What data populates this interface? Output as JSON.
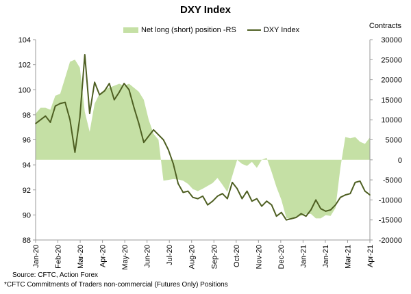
{
  "chart_data": {
    "type": "line",
    "title": "DXY Index",
    "series": [
      {
        "name": "Net long (short) position -RS",
        "type": "area",
        "axis": "right",
        "color": "#c5e0a5",
        "values": [
          11500,
          13000,
          13000,
          12500,
          16000,
          16500,
          20500,
          24500,
          25000,
          23000,
          12000,
          7000,
          14000,
          16500,
          17500,
          18000,
          18500,
          19000,
          18500,
          19000,
          18000,
          17000,
          15000,
          10000,
          6500,
          5000,
          -5200,
          -5000,
          -4800,
          -4900,
          -5200,
          -6000,
          -7300,
          -7800,
          -7200,
          -6500,
          -5800,
          -4500,
          -6200,
          -8000,
          -4000,
          0,
          -1000,
          -1500,
          -500,
          -2000,
          0,
          500,
          -3000,
          -6800,
          -10000,
          -14500,
          -14800,
          -14300,
          -14000,
          -13500,
          -13500,
          -14600,
          -14600,
          -13800,
          -14000,
          -12000,
          -2000,
          5700,
          5400,
          5700,
          4500,
          4000,
          5600
        ]
      },
      {
        "name": "DXY Index",
        "type": "line",
        "axis": "left",
        "color": "#4e5f22",
        "values": [
          97.3,
          97.6,
          97.9,
          97.4,
          98.7,
          98.9,
          99.0,
          97.6,
          95.0,
          97.8,
          102.8,
          98.1,
          100.6,
          99.6,
          99.9,
          100.5,
          99.2,
          99.8,
          100.5,
          100.0,
          98.6,
          97.3,
          95.8,
          96.3,
          96.8,
          96.4,
          96.0,
          95.2,
          94.1,
          92.5,
          91.8,
          91.9,
          91.4,
          91.3,
          91.5,
          90.8,
          91.1,
          91.5,
          91.7,
          91.3,
          92.6,
          92.1,
          91.3,
          91.9,
          91.1,
          91.3,
          90.7,
          91.1,
          90.8,
          89.9,
          90.2,
          89.6,
          89.7,
          89.8,
          90.1,
          89.9,
          90.4,
          91.2,
          90.5,
          90.3,
          90.4,
          90.8,
          91.4,
          91.6,
          91.7,
          92.6,
          92.7,
          91.9,
          91.6
        ]
      }
    ],
    "left_axis": {
      "ylim": [
        88,
        104
      ],
      "ticks": [
        "104",
        "102",
        "100",
        "98",
        "96",
        "94",
        "92",
        "90",
        "88"
      ]
    },
    "right_axis": {
      "ylim": [
        -20000,
        30000
      ],
      "label": "Contracts",
      "ticks": [
        "30000",
        "25000",
        "20000",
        "15000",
        "10000",
        "5000",
        "0",
        "-5000",
        "-10000",
        "-15000",
        "-20000"
      ]
    },
    "x_tick_labels": [
      "Jan-20",
      "Feb-20",
      "Mar-20",
      "Apr-20",
      "May-20",
      "Jun-20",
      "Jul-20",
      "Aug-20",
      "Sep-20",
      "Oct-20",
      "Nov-20",
      "Dec-20",
      "Jan-21",
      "Jan-21",
      "Mar-21",
      "Apr-21"
    ],
    "legend": {
      "placement": "top",
      "area_label": "Net long (short) position -RS",
      "line_label": "DXY Index"
    },
    "source": "Source: CFTC, Action Forex",
    "footnote": "*CFTC Commitments of Traders non-commercial (Futures Only) Positions"
  }
}
